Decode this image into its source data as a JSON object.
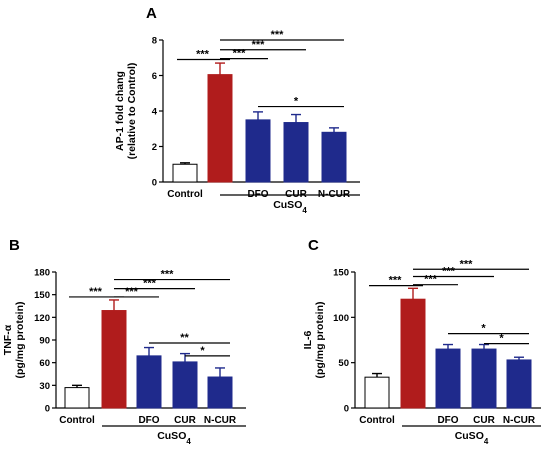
{
  "colors": {
    "control": "#ffffff",
    "cuso4": "#b01c1c",
    "treatment": "#1f2a8c",
    "axis": "#000000"
  },
  "chart_data": [
    {
      "panel": "A",
      "type": "bar",
      "ylabel": "AP-1 fold chang",
      "ylabel2": "(relative to Control)",
      "ylim": [
        0,
        8
      ],
      "yticks": [
        "0",
        "2",
        "4",
        "6",
        "8"
      ],
      "categories": [
        "Control",
        "",
        "DFO",
        "CUR",
        "N-CUR"
      ],
      "group_label": "CuSO",
      "group_label_sub": "4",
      "values": [
        1.0,
        6.05,
        3.5,
        3.35,
        2.8
      ],
      "errors": [
        0.08,
        0.65,
        0.45,
        0.45,
        0.25
      ],
      "bar_colors": [
        "control",
        "cuso4",
        "treatment",
        "treatment",
        "treatment"
      ],
      "significance": [
        {
          "from": 0,
          "to": 1,
          "label": "***",
          "y": 6.9
        },
        {
          "from": 1,
          "to": 2,
          "label": "***",
          "y": 6.95
        },
        {
          "from": 1,
          "to": 3,
          "label": "***",
          "y": 7.45
        },
        {
          "from": 1,
          "to": 4,
          "label": "***",
          "y": 8.0
        },
        {
          "from": 2,
          "to": 4,
          "label": "*",
          "y": 4.25
        }
      ]
    },
    {
      "panel": "B",
      "type": "bar",
      "ylabel": "TNF-α",
      "ylabel2": "(pg/mg protein)",
      "ylim": [
        0,
        180
      ],
      "yticks": [
        "0",
        "30",
        "60",
        "90",
        "120",
        "150",
        "180"
      ],
      "categories": [
        "Control",
        "",
        "DFO",
        "CUR",
        "N-CUR"
      ],
      "group_label": "CuSO",
      "group_label_sub": "4",
      "values": [
        27,
        129,
        69,
        61,
        41
      ],
      "errors": [
        3,
        14,
        11,
        11,
        12
      ],
      "bar_colors": [
        "control",
        "cuso4",
        "treatment",
        "treatment",
        "treatment"
      ],
      "significance": [
        {
          "from": 0,
          "to": 1,
          "label": "***",
          "y": 147
        },
        {
          "from": 1,
          "to": 2,
          "label": "***",
          "y": 147
        },
        {
          "from": 1,
          "to": 3,
          "label": "***",
          "y": 158
        },
        {
          "from": 1,
          "to": 4,
          "label": "***",
          "y": 170
        },
        {
          "from": 2,
          "to": 4,
          "label": "**",
          "y": 86
        },
        {
          "from": 3,
          "to": 4,
          "label": "*",
          "y": 69
        }
      ]
    },
    {
      "panel": "C",
      "type": "bar",
      "ylabel": "IL-6",
      "ylabel2": "(pg/mg protein)",
      "ylim": [
        0,
        150
      ],
      "yticks": [
        "0",
        "50",
        "100",
        "150"
      ],
      "categories": [
        "Control",
        "",
        "DFO",
        "CUR",
        "N-CUR"
      ],
      "group_label": "CuSO",
      "group_label_sub": "4",
      "values": [
        34,
        120,
        65,
        65,
        53
      ],
      "errors": [
        4,
        12,
        5,
        5,
        3
      ],
      "bar_colors": [
        "control",
        "cuso4",
        "treatment",
        "treatment",
        "treatment"
      ],
      "significance": [
        {
          "from": 0,
          "to": 1,
          "label": "***",
          "y": 135
        },
        {
          "from": 1,
          "to": 2,
          "label": "***",
          "y": 136
        },
        {
          "from": 1,
          "to": 3,
          "label": "***",
          "y": 145
        },
        {
          "from": 1,
          "to": 4,
          "label": "***",
          "y": 153
        },
        {
          "from": 2,
          "to": 4,
          "label": "*",
          "y": 82
        },
        {
          "from": 3,
          "to": 4,
          "label": "*",
          "y": 71
        }
      ]
    }
  ]
}
